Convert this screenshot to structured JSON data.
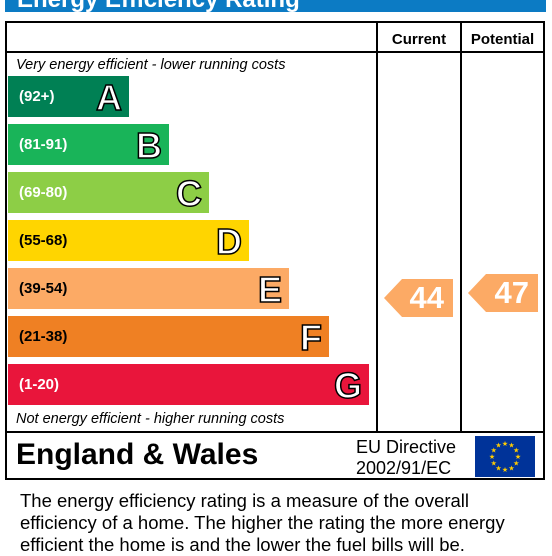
{
  "header": {
    "title": "Energy Efficiency Rating"
  },
  "chart_data": {
    "type": "bar",
    "title": "Energy Efficiency Rating",
    "columns": [
      "Current",
      "Potential"
    ],
    "top_note": "Very energy efficient - lower running costs",
    "bottom_note": "Not energy efficient - higher running costs",
    "bands": [
      {
        "letter": "A",
        "range": "(92+)",
        "color": "#008054"
      },
      {
        "letter": "B",
        "range": "(81-91)",
        "color": "#19b459"
      },
      {
        "letter": "C",
        "range": "(69-80)",
        "color": "#8dce46"
      },
      {
        "letter": "D",
        "range": "(55-68)",
        "color": "#ffd500"
      },
      {
        "letter": "E",
        "range": "(39-54)",
        "color": "#fcaa65"
      },
      {
        "letter": "F",
        "range": "(21-38)",
        "color": "#ef8023"
      },
      {
        "letter": "G",
        "range": "(1-20)",
        "color": "#e9153b"
      }
    ],
    "current": {
      "value": 44,
      "band": "E",
      "color": "#fcaa65"
    },
    "potential": {
      "value": 47,
      "band": "E",
      "color": "#fcaa65"
    }
  },
  "footer": {
    "region": "England & Wales",
    "directive_line1": "EU Directive",
    "directive_line2": "2002/91/EC",
    "flag_icon": "eu-flag-icon"
  },
  "description": "The energy efficiency rating is a measure of the overall efficiency of a home.  The higher the rating the more energy efficient the home is and the lower the fuel bills will be."
}
